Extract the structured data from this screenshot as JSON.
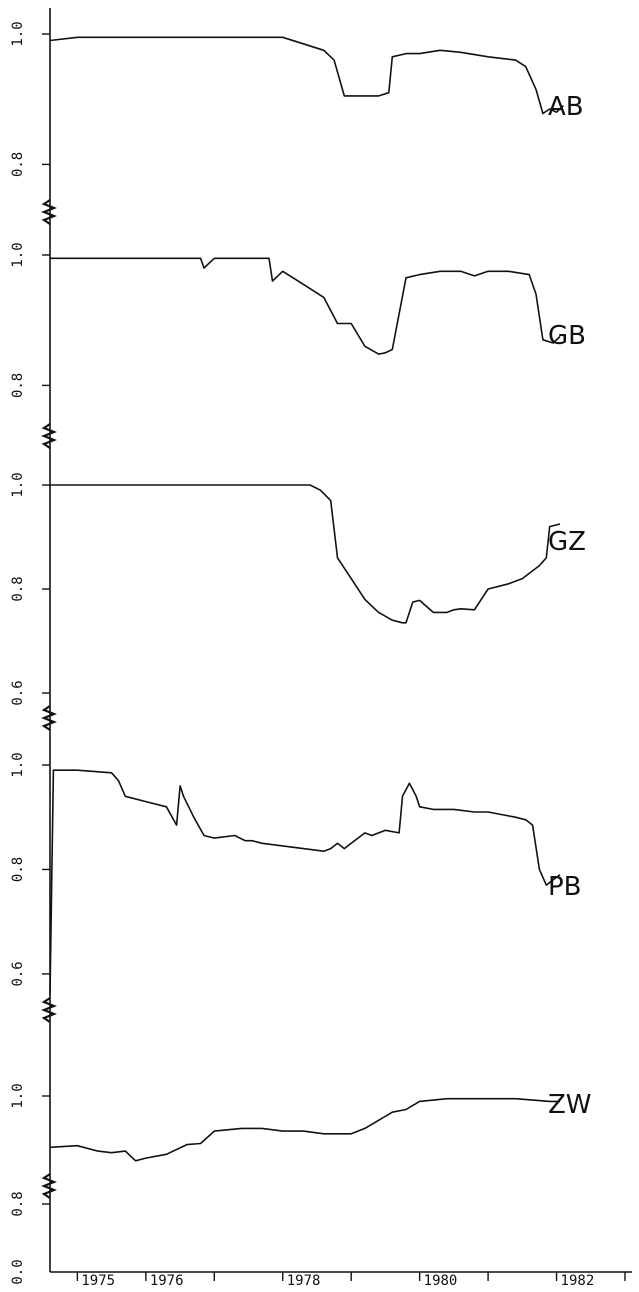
{
  "chart_data": {
    "type": "line",
    "title": "",
    "xlabel": "",
    "ylabel": "",
    "grid": false,
    "x_tick_labels": [
      "1975",
      "1976",
      "1978",
      "1980",
      "1982"
    ],
    "panels": [
      {
        "name": "AB",
        "ylim": [
          0.75,
          1.0
        ],
        "y_tick_labels": [
          "1.0",
          "0.8"
        ],
        "x": [
          1974.6,
          1975.0,
          1976.0,
          1977.0,
          1978.0,
          1978.3,
          1978.6,
          1978.75,
          1978.9,
          1979.0,
          1979.2,
          1979.4,
          1979.55,
          1979.6,
          1979.8,
          1980.0,
          1980.3,
          1980.6,
          1981.0,
          1981.4,
          1981.55,
          1981.7,
          1981.8,
          1981.9,
          1982.0,
          1982.1
        ],
        "values": [
          0.99,
          0.995,
          0.995,
          0.995,
          0.995,
          0.985,
          0.975,
          0.96,
          0.905,
          0.905,
          0.905,
          0.905,
          0.91,
          0.965,
          0.97,
          0.97,
          0.975,
          0.972,
          0.965,
          0.96,
          0.95,
          0.915,
          0.878,
          0.885,
          0.88,
          0.89
        ]
      },
      {
        "name": "GB",
        "ylim": [
          0.75,
          1.0
        ],
        "y_tick_labels": [
          "1.0",
          "0.8"
        ],
        "x": [
          1974.6,
          1975.0,
          1976.0,
          1976.8,
          1976.85,
          1977.0,
          1977.5,
          1977.8,
          1977.85,
          1978.0,
          1978.3,
          1978.6,
          1978.8,
          1979.0,
          1979.2,
          1979.4,
          1979.5,
          1979.6,
          1979.8,
          1980.0,
          1980.3,
          1980.6,
          1980.8,
          1981.0,
          1981.3,
          1981.6,
          1981.7,
          1981.8,
          1981.95,
          1982.05
        ],
        "values": [
          0.995,
          0.995,
          0.995,
          0.995,
          0.98,
          0.995,
          0.995,
          0.995,
          0.96,
          0.975,
          0.955,
          0.935,
          0.895,
          0.895,
          0.86,
          0.848,
          0.85,
          0.855,
          0.965,
          0.97,
          0.975,
          0.975,
          0.968,
          0.975,
          0.975,
          0.97,
          0.94,
          0.87,
          0.865,
          0.875
        ]
      },
      {
        "name": "GZ",
        "ylim": [
          0.55,
          1.0
        ],
        "y_tick_labels": [
          "1.0",
          "0.8",
          "0.6"
        ],
        "x": [
          1974.6,
          1975.0,
          1976.0,
          1977.0,
          1978.0,
          1978.4,
          1978.55,
          1978.7,
          1978.8,
          1979.0,
          1979.2,
          1979.4,
          1979.6,
          1979.75,
          1979.8,
          1979.9,
          1980.0,
          1980.2,
          1980.4,
          1980.5,
          1980.6,
          1980.8,
          1981.0,
          1981.3,
          1981.5,
          1981.6,
          1981.75,
          1981.85,
          1981.9,
          1982.05
        ],
        "values": [
          1.0,
          1.0,
          1.0,
          1.0,
          1.0,
          1.0,
          0.99,
          0.97,
          0.86,
          0.82,
          0.78,
          0.755,
          0.74,
          0.735,
          0.735,
          0.775,
          0.778,
          0.755,
          0.755,
          0.76,
          0.762,
          0.76,
          0.8,
          0.81,
          0.82,
          0.83,
          0.845,
          0.86,
          0.92,
          0.925
        ]
      },
      {
        "name": "PB",
        "ylim": [
          0.55,
          1.0
        ],
        "y_tick_labels": [
          "1.0",
          "0.8",
          "0.6"
        ],
        "x": [
          1974.6,
          1974.65,
          1975.0,
          1975.5,
          1975.6,
          1975.7,
          1976.0,
          1976.3,
          1976.45,
          1976.5,
          1976.55,
          1976.7,
          1976.85,
          1977.0,
          1977.3,
          1977.45,
          1977.55,
          1977.7,
          1978.0,
          1978.3,
          1978.6,
          1978.7,
          1978.8,
          1978.9,
          1979.0,
          1979.1,
          1979.2,
          1979.3,
          1979.5,
          1979.7,
          1979.75,
          1979.85,
          1979.95,
          1980.0,
          1980.2,
          1980.5,
          1980.8,
          1981.0,
          1981.2,
          1981.4,
          1981.55,
          1981.65,
          1981.75,
          1981.85,
          1981.95,
          1982.05
        ],
        "values": [
          0.56,
          0.99,
          0.99,
          0.985,
          0.97,
          0.94,
          0.93,
          0.92,
          0.885,
          0.96,
          0.94,
          0.9,
          0.865,
          0.86,
          0.865,
          0.855,
          0.855,
          0.85,
          0.845,
          0.84,
          0.835,
          0.84,
          0.85,
          0.84,
          0.85,
          0.86,
          0.87,
          0.865,
          0.875,
          0.87,
          0.94,
          0.965,
          0.94,
          0.92,
          0.915,
          0.915,
          0.91,
          0.91,
          0.905,
          0.9,
          0.895,
          0.885,
          0.8,
          0.77,
          0.78,
          0.79
        ]
      },
      {
        "name": "ZW",
        "ylim": [
          0.75,
          1.0
        ],
        "y_tick_labels": [
          "1.0",
          "0.8"
        ],
        "x": [
          1974.6,
          1975.0,
          1975.3,
          1975.5,
          1975.7,
          1975.85,
          1976.0,
          1976.3,
          1976.6,
          1976.8,
          1977.0,
          1977.4,
          1977.7,
          1978.0,
          1978.3,
          1978.6,
          1978.9,
          1979.0,
          1979.2,
          1979.4,
          1979.6,
          1979.8,
          1980.0,
          1980.4,
          1980.8,
          1981.0,
          1981.4,
          1981.7,
          1981.9,
          1982.05
        ],
        "values": [
          0.905,
          0.908,
          0.898,
          0.895,
          0.898,
          0.88,
          0.885,
          0.892,
          0.91,
          0.912,
          0.935,
          0.94,
          0.94,
          0.935,
          0.935,
          0.93,
          0.93,
          0.93,
          0.94,
          0.955,
          0.97,
          0.975,
          0.99,
          0.995,
          0.995,
          0.995,
          0.995,
          0.992,
          0.99,
          0.99
        ]
      }
    ]
  }
}
